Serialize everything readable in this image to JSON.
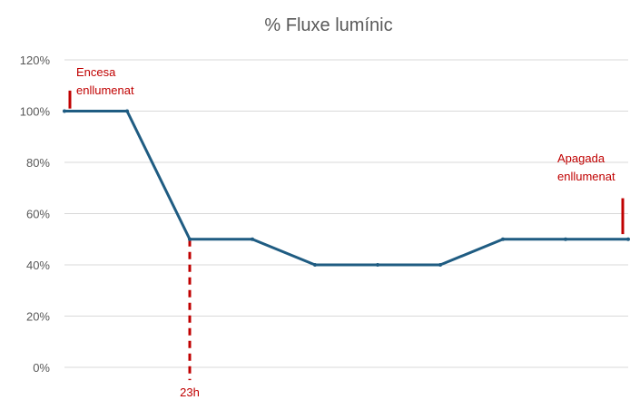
{
  "chart_data": {
    "type": "line",
    "title": "% Fluxe lumínic",
    "xlabel": "",
    "ylabel": "",
    "ylim": [
      0,
      120
    ],
    "y_ticks": [
      {
        "value": 0,
        "label": "0%"
      },
      {
        "value": 20,
        "label": "20%"
      },
      {
        "value": 40,
        "label": "40%"
      },
      {
        "value": 60,
        "label": "60%"
      },
      {
        "value": 80,
        "label": "80%"
      },
      {
        "value": 100,
        "label": "100%"
      },
      {
        "value": 120,
        "label": "120%"
      }
    ],
    "grid": true,
    "xlim": [
      0,
      9
    ],
    "series": [
      {
        "x": [
          0,
          1,
          2,
          3,
          4,
          5,
          6,
          7,
          8,
          9
        ],
        "values": [
          100,
          100,
          50,
          50,
          40,
          40,
          40,
          50,
          50,
          50
        ],
        "color": "#1f5c82"
      }
    ],
    "annotations": [
      {
        "line1": "Encesa",
        "line2": "enllumenat",
        "x": 0,
        "marker_from": 101,
        "marker_to": 108
      },
      {
        "line1": "Apagada",
        "line2": "enllumenat",
        "x": 9,
        "marker_from": 52,
        "marker_to": 66
      },
      {
        "label": "23h",
        "x": 2,
        "dashed_from": 50,
        "dashed_to": -5
      }
    ],
    "colors": {
      "annotation": "#c00000",
      "grid": "#d9d9d9",
      "text": "#595959"
    }
  }
}
